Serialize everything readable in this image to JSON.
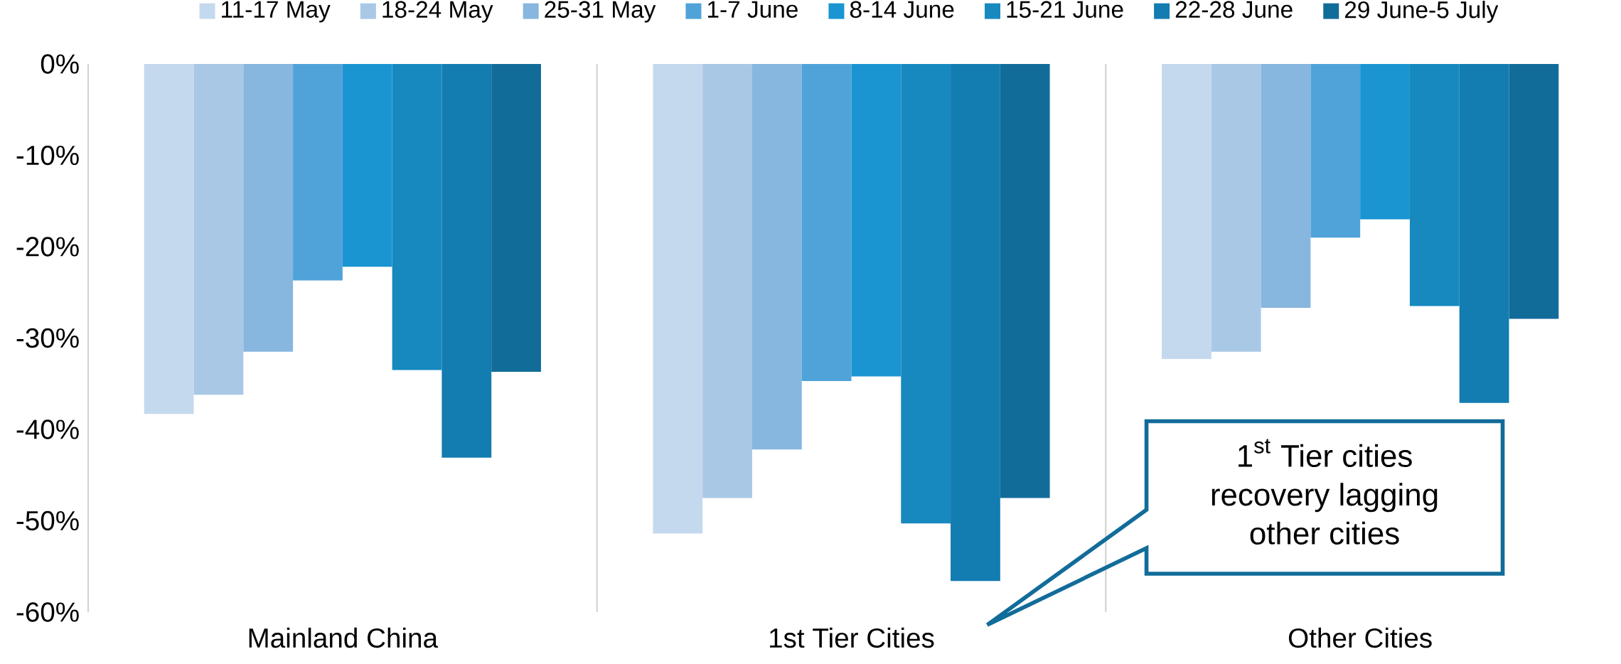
{
  "chart_data": {
    "type": "bar",
    "categories": [
      "Mainland China",
      "1st Tier Cities",
      "Other Cities"
    ],
    "series": [
      {
        "name": "11-17 May",
        "color": "#c5d9ee",
        "values": [
          -38.3,
          -51.4,
          -32.3
        ]
      },
      {
        "name": "18-24 May",
        "color": "#a9c8e6",
        "values": [
          -36.2,
          -47.5,
          -31.5
        ]
      },
      {
        "name": "25-31 May",
        "color": "#87b6df",
        "values": [
          -31.5,
          -42.2,
          -26.7
        ]
      },
      {
        "name": "1-7 June",
        "color": "#4fa3d9",
        "values": [
          -23.7,
          -34.7,
          -19.0
        ]
      },
      {
        "name": "8-14 June",
        "color": "#1a95d2",
        "values": [
          -22.2,
          -34.2,
          -17.0
        ]
      },
      {
        "name": "15-21 June",
        "color": "#1789bf",
        "values": [
          -33.5,
          -50.3,
          -26.5
        ]
      },
      {
        "name": "22-28 June",
        "color": "#137cb0",
        "values": [
          -43.1,
          -56.6,
          -37.1
        ]
      },
      {
        "name": "29 June-5 July",
        "color": "#126c9a",
        "values": [
          -33.7,
          -47.5,
          -27.9
        ]
      }
    ],
    "ylim": [
      -60,
      0
    ],
    "yticks": [
      {
        "value": -60,
        "label": "-60%"
      },
      {
        "value": -50,
        "label": "-50%"
      },
      {
        "value": -40,
        "label": "-40%"
      },
      {
        "value": -30,
        "label": "-30%"
      },
      {
        "value": -20,
        "label": "-20%"
      },
      {
        "value": -10,
        "label": "-10%"
      },
      {
        "value": 0,
        "label": "0%"
      }
    ],
    "grid": "x",
    "legend": "top",
    "annotations": [
      "\\begin{array}{c}\\text{1}^{\\text{st}}\\text{ Tier cities}\\\\ \\text{recovery lagging}\\\\ \\text{other cities}\\end{array}"
    ]
  }
}
